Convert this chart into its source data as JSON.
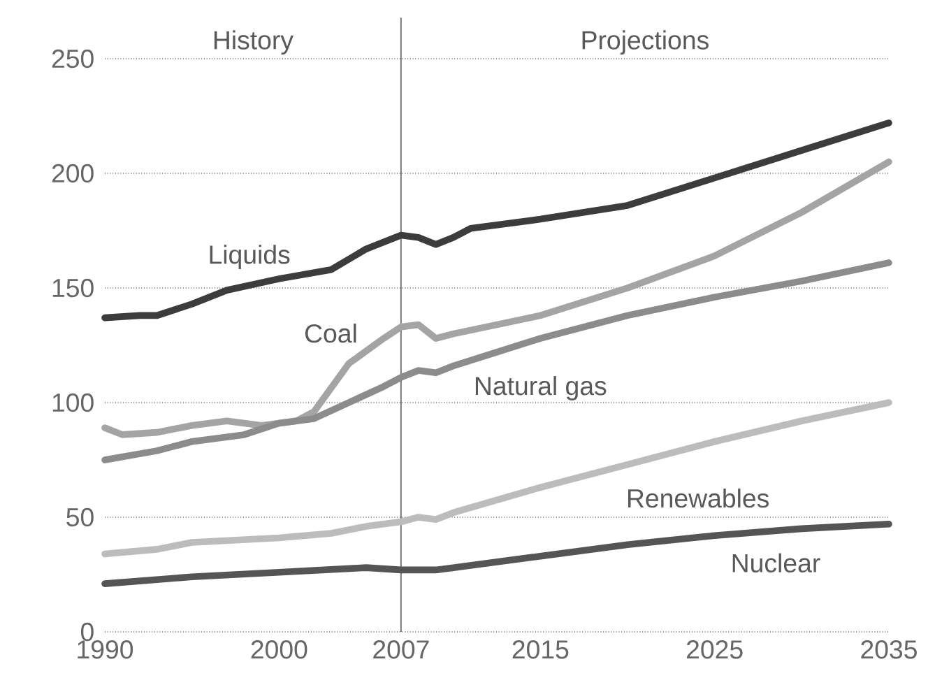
{
  "chart_data": {
    "type": "line",
    "xlim": [
      1990,
      2035
    ],
    "xticks": [
      1990,
      2000,
      2007,
      2015,
      2025,
      2035
    ],
    "ylim": [
      0,
      250
    ],
    "yticks": [
      0,
      50,
      100,
      150,
      200,
      250
    ],
    "grid": "y",
    "ref_lines": [
      {
        "axis": "x",
        "value": 2007,
        "color": "#707070"
      }
    ],
    "annotations": [
      "History",
      "Projections"
    ],
    "series": [
      {
        "name": "Liquids",
        "color": "#3c3c3c",
        "x": [
          1990,
          1992,
          1993,
          1995,
          1997,
          2000,
          2003,
          2005,
          2007,
          2008,
          2009,
          2010,
          2011,
          2015,
          2020,
          2025,
          2030,
          2035
        ],
        "values": [
          137,
          138,
          138,
          143,
          149,
          154,
          158,
          167,
          173,
          172,
          169,
          172,
          176,
          180,
          186,
          198,
          210,
          222
        ]
      },
      {
        "name": "Coal",
        "color": "#a4a4a4",
        "x": [
          1990,
          1991,
          1993,
          1995,
          1997,
          1999,
          2001,
          2002,
          2004,
          2006,
          2007,
          2008,
          2009,
          2010,
          2015,
          2020,
          2025,
          2030,
          2035
        ],
        "values": [
          89,
          86,
          87,
          90,
          92,
          90,
          92,
          96,
          117,
          128,
          133,
          134,
          128,
          130,
          138,
          150,
          164,
          183,
          205
        ]
      },
      {
        "name": "Natural gas",
        "color": "#8c8c8c",
        "x": [
          1990,
          1993,
          1995,
          1998,
          2000,
          2002,
          2004,
          2006,
          2007,
          2008,
          2009,
          2010,
          2015,
          2020,
          2025,
          2030,
          2035
        ],
        "values": [
          75,
          79,
          83,
          86,
          91,
          93,
          100,
          107,
          111,
          114,
          113,
          116,
          128,
          138,
          146,
          153,
          161
        ]
      },
      {
        "name": "Renewables",
        "color": "#bcbcbc",
        "x": [
          1990,
          1993,
          1995,
          2000,
          2003,
          2005,
          2007,
          2008,
          2009,
          2010,
          2015,
          2020,
          2025,
          2030,
          2035
        ],
        "values": [
          34,
          36,
          39,
          41,
          43,
          46,
          48,
          50,
          49,
          52,
          63,
          73,
          83,
          92,
          100
        ]
      },
      {
        "name": "Nuclear",
        "color": "#555555",
        "x": [
          1990,
          1995,
          2000,
          2005,
          2007,
          2009,
          2010,
          2015,
          2020,
          2025,
          2030,
          2035
        ],
        "values": [
          21,
          24,
          26,
          28,
          27,
          27,
          28,
          33,
          38,
          42,
          45,
          47
        ]
      }
    ]
  }
}
